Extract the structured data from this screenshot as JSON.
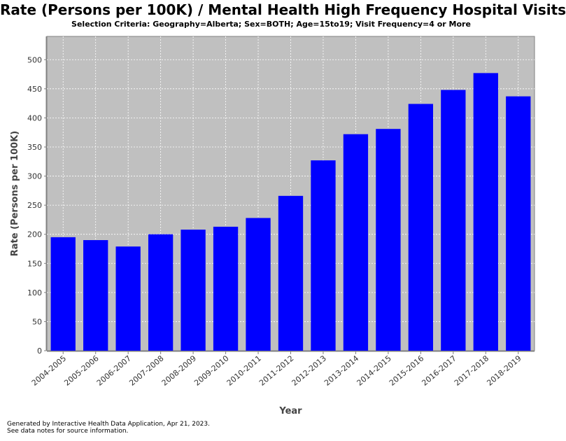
{
  "chart_data": {
    "type": "bar",
    "title": "Rate (Persons per 100K) / Mental Health High Frequency Hospital Visits",
    "subtitle": "Selection Criteria: Geography=Alberta; Sex=BOTH; Age=15to19; Visit Frequency=4 or More",
    "xlabel": "Year",
    "ylabel": "Rate (Persons per 100K)",
    "ylim": [
      0,
      540
    ],
    "yticks": [
      0,
      50,
      100,
      150,
      200,
      250,
      300,
      350,
      400,
      450,
      500
    ],
    "grid": true,
    "categories": [
      "2004-2005",
      "2005-2006",
      "2006-2007",
      "2007-2008",
      "2008-2009",
      "2009-2010",
      "2010-2011",
      "2011-2012",
      "2012-2013",
      "2013-2014",
      "2014-2015",
      "2015-2016",
      "2016-2017",
      "2017-2018",
      "2018-2019"
    ],
    "values": [
      195,
      190,
      179,
      200,
      208,
      213,
      228,
      266,
      327,
      372,
      381,
      424,
      448,
      477,
      437
    ],
    "bar_color": "#0000ff",
    "plot_background": "#c0c0c0"
  },
  "footer": {
    "line1": "Generated by Interactive Health Data Application, Apr 21, 2023.",
    "line2": "See data notes for source information."
  }
}
